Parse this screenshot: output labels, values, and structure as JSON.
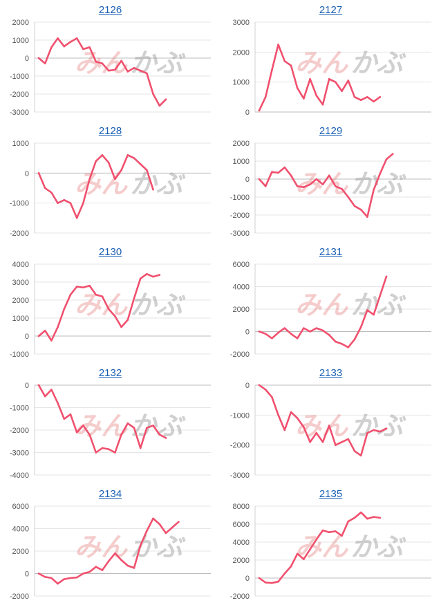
{
  "watermark": {
    "part1": "みん",
    "part2": "かぶ"
  },
  "line_color": "#f0506e",
  "chart_data": [
    {
      "type": "line",
      "title": "2126",
      "ylim": [
        -3000,
        2000
      ],
      "yticks": [
        2000,
        1000,
        0,
        -1000,
        -2000,
        -3000
      ],
      "values": [
        0,
        -300,
        600,
        1100,
        650,
        900,
        1100,
        500,
        600,
        -200,
        -300,
        -700,
        -650,
        -150,
        -750,
        -550,
        -700,
        -850,
        -2000,
        -2650,
        -2300
      ]
    },
    {
      "type": "line",
      "title": "2127",
      "ylim": [
        0,
        3000
      ],
      "yticks": [
        3000,
        2000,
        1000,
        0
      ],
      "values": [
        50,
        500,
        1400,
        2250,
        1700,
        1550,
        800,
        450,
        1100,
        550,
        250,
        1100,
        1000,
        700,
        1050,
        500,
        400,
        500,
        350,
        500
      ]
    },
    {
      "type": "line",
      "title": "2128",
      "ylim": [
        -2000,
        1000
      ],
      "yticks": [
        1000,
        0,
        -1000,
        -2000
      ],
      "values": [
        0,
        -500,
        -650,
        -1000,
        -900,
        -1000,
        -1500,
        -1000,
        -200,
        400,
        600,
        350,
        -200,
        100,
        600,
        500,
        300,
        100,
        -550
      ]
    },
    {
      "type": "line",
      "title": "2129",
      "ylim": [
        -3000,
        2000
      ],
      "yticks": [
        2000,
        1000,
        0,
        -1000,
        -2000,
        -3000
      ],
      "values": [
        0,
        -400,
        400,
        350,
        650,
        200,
        -400,
        -450,
        -300,
        0,
        -300,
        200,
        -400,
        -550,
        -1000,
        -1500,
        -1700,
        -2100,
        -600,
        300,
        1100,
        1400
      ]
    },
    {
      "type": "line",
      "title": "2130",
      "ylim": [
        -1000,
        4000
      ],
      "yticks": [
        4000,
        3000,
        2000,
        1000,
        0,
        -1000
      ],
      "values": [
        0,
        300,
        -250,
        500,
        1500,
        2300,
        2750,
        2700,
        2800,
        2300,
        2200,
        1500,
        1100,
        500,
        900,
        2100,
        3200,
        3450,
        3300,
        3400
      ]
    },
    {
      "type": "line",
      "title": "2131",
      "ylim": [
        -2000,
        6000
      ],
      "yticks": [
        6000,
        4000,
        2000,
        0,
        -2000
      ],
      "values": [
        0,
        -200,
        -600,
        -100,
        300,
        -200,
        -600,
        300,
        0,
        300,
        100,
        -300,
        -900,
        -1100,
        -1400,
        -700,
        400,
        1900,
        1500,
        3200,
        4900
      ]
    },
    {
      "type": "line",
      "title": "2132",
      "ylim": [
        -4000,
        0
      ],
      "yticks": [
        0,
        -1000,
        -2000,
        -3000,
        -4000
      ],
      "values": [
        0,
        -500,
        -200,
        -800,
        -1500,
        -1300,
        -2100,
        -1800,
        -2200,
        -3000,
        -2800,
        -2850,
        -3000,
        -2200,
        -1700,
        -1900,
        -2800,
        -1900,
        -1800,
        -2200,
        -2350
      ]
    },
    {
      "type": "line",
      "title": "2133",
      "ylim": [
        -3000,
        0
      ],
      "yticks": [
        0,
        -1000,
        -2000,
        -3000
      ],
      "values": [
        0,
        -150,
        -400,
        -1000,
        -1500,
        -900,
        -1100,
        -1400,
        -1900,
        -1600,
        -1900,
        -1350,
        -2000,
        -1900,
        -1800,
        -2200,
        -2350,
        -1600,
        -1500,
        -1550,
        -1450
      ]
    },
    {
      "type": "line",
      "title": "2134",
      "ylim": [
        -2000,
        6000
      ],
      "yticks": [
        6000,
        4000,
        2000,
        0,
        -2000
      ],
      "values": [
        0,
        -300,
        -400,
        -900,
        -500,
        -400,
        -350,
        0,
        150,
        600,
        300,
        1100,
        1800,
        1200,
        700,
        500,
        2500,
        3800,
        4900,
        4400,
        3600,
        4100,
        4600
      ]
    },
    {
      "type": "line",
      "title": "2135",
      "ylim": [
        -2000,
        8000
      ],
      "yticks": [
        8000,
        6000,
        4000,
        2000,
        0,
        -2000
      ],
      "values": [
        0,
        -500,
        -550,
        -400,
        500,
        1300,
        2700,
        2100,
        3200,
        4300,
        5300,
        5100,
        5200,
        4700,
        6300,
        6700,
        7300,
        6600,
        6800,
        6700
      ]
    }
  ]
}
